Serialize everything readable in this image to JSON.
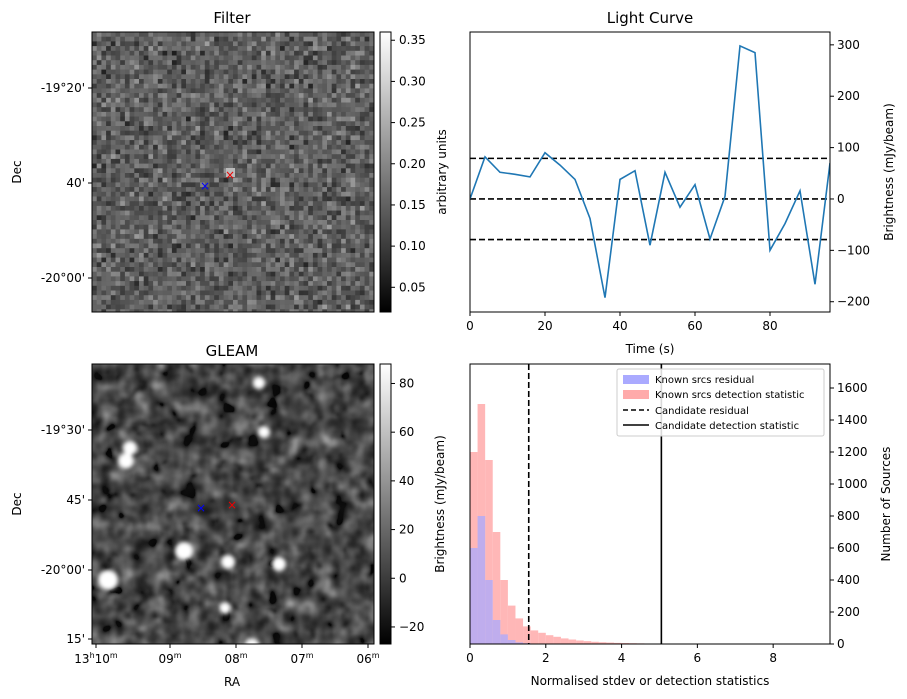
{
  "filter_panel": {
    "title": "Filter",
    "ylabel": "Dec",
    "yticks": [
      "-19°20'",
      "40'",
      "-20°00'"
    ],
    "colorbar_label": "arbitrary units",
    "colorbar_ticks": [
      "0.35",
      "0.30",
      "0.25",
      "0.20",
      "0.15",
      "0.10",
      "0.05"
    ],
    "colorbar_range": [
      0.02,
      0.36
    ]
  },
  "gleam_panel": {
    "title": "GLEAM",
    "xlabel": "RA",
    "ylabel": "Dec",
    "yticks": [
      "-19°30'",
      "45'",
      "-20°00'",
      "15'"
    ],
    "xticks": [
      {
        "main": "13",
        "sup": "h",
        "main2": "10",
        "sup2": "m"
      },
      {
        "main": "09",
        "sup": "m"
      },
      {
        "main": "08",
        "sup": "m"
      },
      {
        "main": "07",
        "sup": "m"
      },
      {
        "main": "06",
        "sup": "m"
      }
    ],
    "colorbar_label": "Brightness (mJy/beam)",
    "colorbar_ticks": [
      "80",
      "60",
      "40",
      "20",
      "0",
      "−20"
    ],
    "colorbar_range": [
      -27,
      88
    ]
  },
  "chart_data": [
    {
      "type": "line",
      "title": "Light Curve",
      "xlabel": "Time (s)",
      "ylabel": "Brightness (mJy/beam)",
      "xlim": [
        0,
        96
      ],
      "ylim": [
        -220,
        325
      ],
      "xticks": [
        "0",
        "20",
        "40",
        "60",
        "80"
      ],
      "yticks": [
        "300",
        "200",
        "100",
        "0",
        "−100",
        "−200"
      ],
      "color": "#1f77b4",
      "series": [
        {
          "x": [
            0,
            4,
            8,
            12,
            16,
            20,
            24,
            28,
            32,
            36,
            40,
            44,
            48,
            52,
            56,
            60,
            64,
            68,
            72,
            76,
            80,
            84,
            88,
            92,
            96
          ],
          "values": [
            0,
            82,
            52,
            48,
            43,
            90,
            66,
            38,
            -38,
            -192,
            38,
            55,
            -90,
            52,
            -16,
            28,
            -78,
            5,
            298,
            285,
            -100,
            -48,
            16,
            -166,
            70
          ]
        }
      ],
      "hlines": [
        {
          "y": 79,
          "style": "dashed",
          "color": "#000000"
        },
        {
          "y": 0,
          "style": "dashed",
          "color": "#000000"
        },
        {
          "y": -79,
          "style": "dashed",
          "color": "#000000"
        }
      ]
    },
    {
      "type": "bar",
      "title": "",
      "xlabel": "Normalised stdev or detection statistics",
      "ylabel": "Number of Sources",
      "left_axis_label": "Brightness (mJy/beam)",
      "xlim": [
        0,
        9.5
      ],
      "ylim": [
        0,
        1750
      ],
      "xticks": [
        "0",
        "2",
        "4",
        "6",
        "8"
      ],
      "yticks": [
        "1600",
        "1400",
        "1200",
        "1000",
        "800",
        "600",
        "400",
        "200",
        "0"
      ],
      "bin_width": 0.2,
      "series": [
        {
          "name": "Known srcs residual",
          "color": "#aaaaff",
          "bin_starts": [
            0.0,
            0.2,
            0.4,
            0.6,
            0.8,
            1.0,
            1.2,
            1.4
          ],
          "values": [
            600,
            800,
            400,
            150,
            60,
            25,
            10,
            5
          ]
        },
        {
          "name": "Known srcs detection statistic",
          "color": "#ffaaaa",
          "bin_starts": [
            0.0,
            0.2,
            0.4,
            0.6,
            0.8,
            1.0,
            1.2,
            1.4,
            1.6,
            1.8,
            2.0,
            2.2,
            2.4,
            2.6,
            2.8,
            3.0,
            3.2,
            3.4,
            3.6,
            3.8,
            4.0,
            4.2,
            4.4,
            4.6,
            4.8,
            5.0,
            5.5,
            6.0,
            7.0,
            8.0
          ],
          "values": [
            1200,
            1500,
            1150,
            700,
            400,
            240,
            160,
            110,
            85,
            70,
            55,
            45,
            35,
            28,
            22,
            18,
            14,
            11,
            9,
            7,
            6,
            5,
            4,
            3,
            3,
            2,
            2,
            1,
            1,
            1
          ]
        }
      ],
      "vlines": [
        {
          "name": "Candidate residual",
          "x": 1.55,
          "style": "dashed",
          "color": "#000000"
        },
        {
          "name": "Candidate detection statistic",
          "x": 5.05,
          "style": "solid",
          "color": "#000000"
        }
      ],
      "legend": "top-right"
    }
  ]
}
